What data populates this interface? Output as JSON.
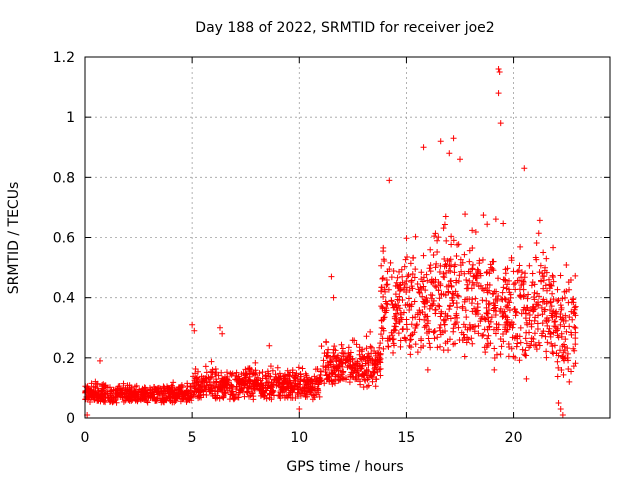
{
  "chart_data": {
    "type": "scatter",
    "title": "Day 188 of 2022, SRMTID for receiver joe2",
    "xlabel": "GPS time / hours",
    "ylabel": "SRMTID / TECUs",
    "xlim": [
      0,
      24.5
    ],
    "ylim": [
      0,
      1.2
    ],
    "xticks": [
      0,
      5,
      10,
      15,
      20
    ],
    "xtick_labels": [
      "0",
      "5",
      "10",
      "15",
      "20"
    ],
    "yticks": [
      0,
      0.2,
      0.4,
      0.6,
      0.8,
      1,
      1.2
    ],
    "ytick_labels": [
      "0",
      "0.2",
      "0.4",
      "0.6",
      "0.8",
      "1",
      "1.2"
    ],
    "grid": true,
    "marker": "+",
    "color": "#ff0000",
    "series": [
      {
        "name": "SRMTID",
        "envelope_segments": [
          {
            "x_start": 0.0,
            "x_end": 5.0,
            "y_low": 0.05,
            "y_high": 0.13
          },
          {
            "x_start": 5.0,
            "x_end": 8.0,
            "y_low": 0.06,
            "y_high": 0.2
          },
          {
            "x_start": 8.0,
            "x_end": 11.0,
            "y_low": 0.06,
            "y_high": 0.19
          },
          {
            "x_start": 11.0,
            "x_end": 13.8,
            "y_low": 0.1,
            "y_high": 0.3
          },
          {
            "x_start": 13.8,
            "x_end": 16.0,
            "y_low": 0.2,
            "y_high": 0.65
          },
          {
            "x_start": 16.0,
            "x_end": 19.0,
            "y_low": 0.2,
            "y_high": 0.75
          },
          {
            "x_start": 19.0,
            "x_end": 22.0,
            "y_low": 0.18,
            "y_high": 0.7
          },
          {
            "x_start": 22.0,
            "x_end": 22.9,
            "y_low": 0.1,
            "y_high": 0.6
          }
        ],
        "notable_points": [
          {
            "x": 0.7,
            "y": 0.19
          },
          {
            "x": 5.0,
            "y": 0.31
          },
          {
            "x": 5.1,
            "y": 0.29
          },
          {
            "x": 6.3,
            "y": 0.3
          },
          {
            "x": 6.4,
            "y": 0.28
          },
          {
            "x": 8.6,
            "y": 0.24
          },
          {
            "x": 11.5,
            "y": 0.47
          },
          {
            "x": 11.6,
            "y": 0.4
          },
          {
            "x": 14.2,
            "y": 0.79
          },
          {
            "x": 15.8,
            "y": 0.9
          },
          {
            "x": 16.6,
            "y": 0.92
          },
          {
            "x": 17.2,
            "y": 0.93
          },
          {
            "x": 17.0,
            "y": 0.88
          },
          {
            "x": 17.5,
            "y": 0.86
          },
          {
            "x": 19.3,
            "y": 1.16
          },
          {
            "x": 19.35,
            "y": 1.15
          },
          {
            "x": 19.3,
            "y": 1.08
          },
          {
            "x": 19.4,
            "y": 0.98
          },
          {
            "x": 20.5,
            "y": 0.83
          },
          {
            "x": 22.2,
            "y": 0.03
          },
          {
            "x": 22.3,
            "y": 0.01
          },
          {
            "x": 22.1,
            "y": 0.05
          },
          {
            "x": 0.1,
            "y": 0.01
          },
          {
            "x": 10.0,
            "y": 0.03
          },
          {
            "x": 16.0,
            "y": 0.16
          },
          {
            "x": 19.1,
            "y": 0.16
          },
          {
            "x": 20.6,
            "y": 0.13
          },
          {
            "x": 22.6,
            "y": 0.12
          }
        ]
      }
    ]
  }
}
